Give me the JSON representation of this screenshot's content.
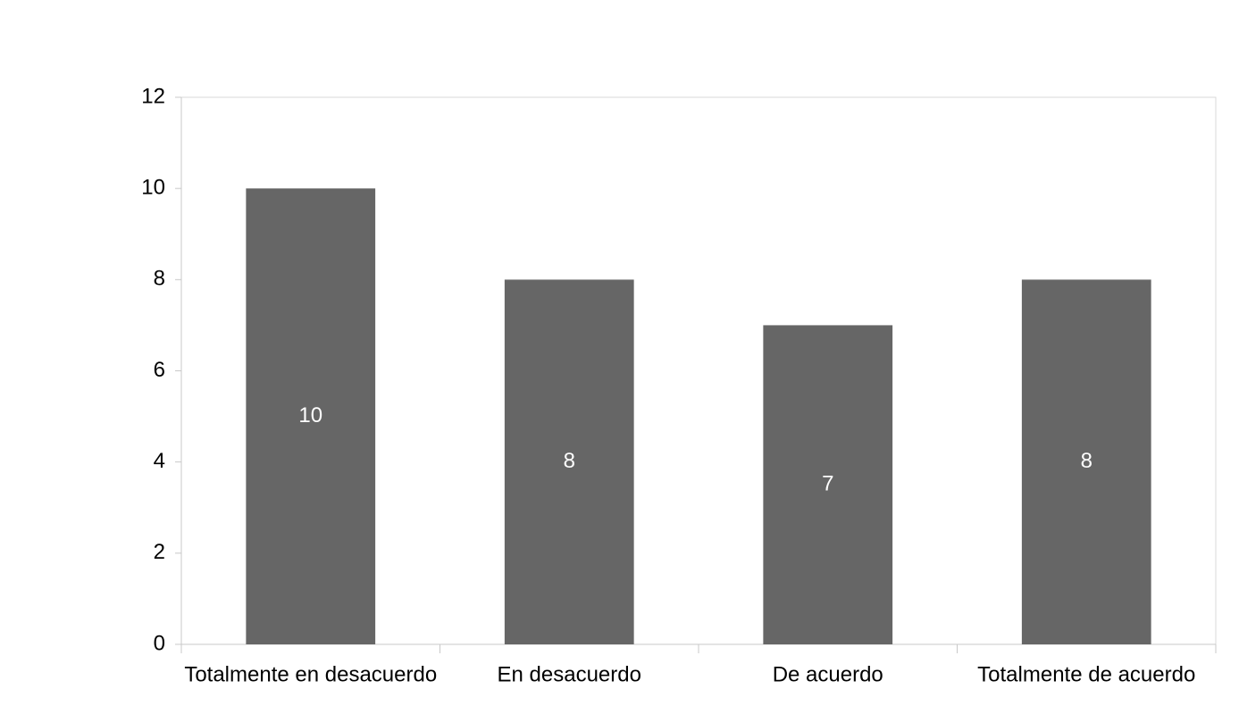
{
  "chart_data": {
    "type": "bar",
    "categories": [
      "Totalmente en desacuerdo",
      "En desacuerdo",
      "De acuerdo",
      "Totalmente de acuerdo"
    ],
    "values": [
      10,
      8,
      7,
      8
    ],
    "color": "#666666",
    "ylim": [
      0,
      12
    ],
    "yticks": [
      0,
      2,
      4,
      6,
      8,
      10,
      12
    ],
    "grid": false,
    "data_labels": true,
    "label_color": "#ffffff"
  }
}
